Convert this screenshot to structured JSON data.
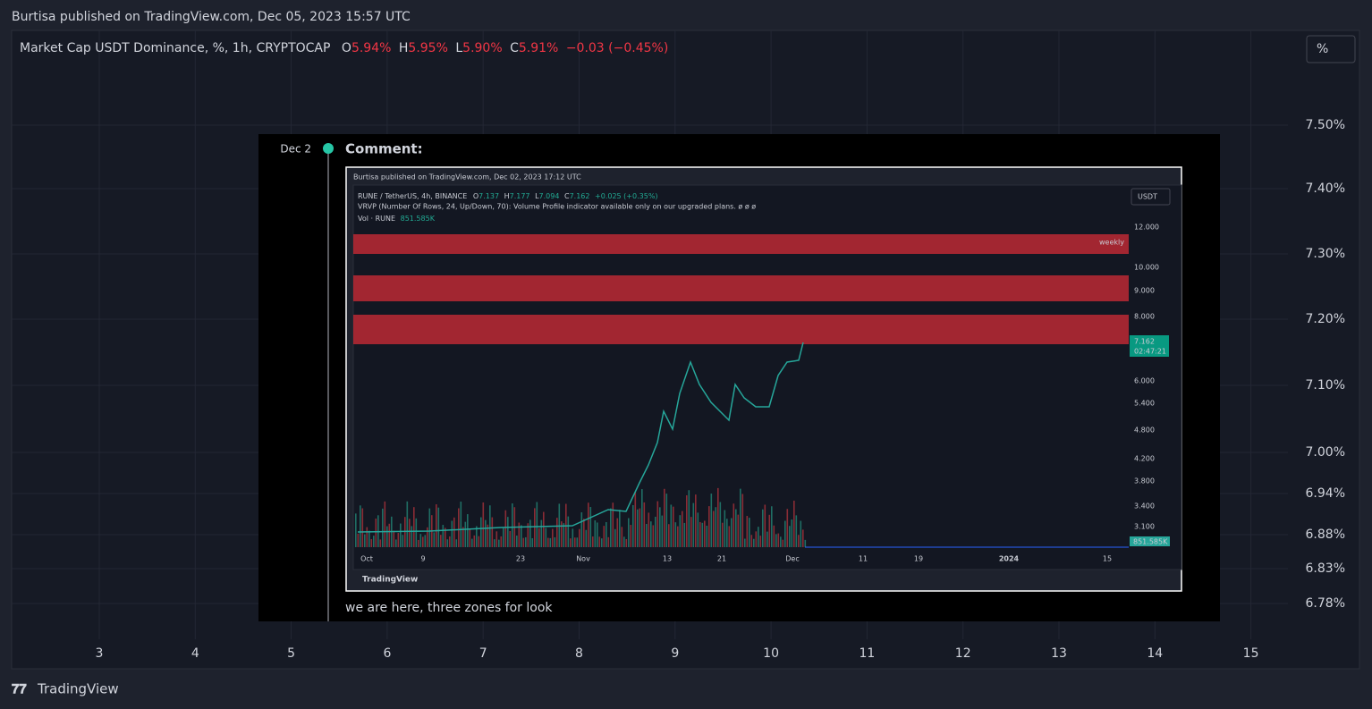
{
  "header": {
    "title": "Burtisa published on TradingView.com, Dec 05, 2023 15:57 UTC"
  },
  "legend": {
    "symbol": "Market Cap USDT Dominance, %, 1h, CRYPTOCAP",
    "items": [
      {
        "key": "O",
        "value": "5.94%"
      },
      {
        "key": "H",
        "value": "5.95%"
      },
      {
        "key": "L",
        "value": "5.90%"
      },
      {
        "key": "C",
        "value": "5.91%"
      }
    ],
    "change": "−0.03 (−0.45%)"
  },
  "scale_button": "%",
  "price_axis": [
    "7.50%",
    "7.40%",
    "7.30%",
    "7.20%",
    "7.10%",
    "7.00%",
    "6.94%",
    "6.88%",
    "6.83%",
    "6.78%"
  ],
  "time_axis": [
    "3",
    "4",
    "5",
    "6",
    "7",
    "8",
    "9",
    "10",
    "11",
    "12",
    "13",
    "14",
    "15"
  ],
  "comment": {
    "date": "Dec 2",
    "heading": "Comment:",
    "text": "we are here, three zones for look",
    "image": {
      "title": "Burtisa published on TradingView.com, Dec 02, 2023 17:12 UTC",
      "legend": {
        "symbol": "RUNE / TetherUS, 4h, BINANCE",
        "items": [
          {
            "key": "O",
            "value": "7.137"
          },
          {
            "key": "H",
            "value": "7.177"
          },
          {
            "key": "L",
            "value": "7.094"
          },
          {
            "key": "C",
            "value": "7.162"
          }
        ],
        "change": "+0.025 (+0.35%)"
      },
      "indicator": "VRVP (Number Of Rows, 24, Up/Down, 70): Volume Profile indicator available only on our upgraded plans.  ø  ø  ø",
      "volume_legend": {
        "key": "Vol · RUNE",
        "value": "851.585K"
      },
      "currency_button": "USDT",
      "zone_label": "weekly",
      "price_axis": [
        "12.000",
        "10.000",
        "9.000",
        "8.000",
        "6.000",
        "5.400",
        "4.800",
        "4.200",
        "3.800",
        "3.400",
        "3.100"
      ],
      "price_tag": {
        "price": "7.162",
        "countdown": "02:47:21"
      },
      "volume_tag": "851.585K",
      "time_axis": [
        "Oct",
        "9",
        "23",
        "Nov",
        "13",
        "21",
        "Dec",
        "11",
        "19",
        "2024",
        "15"
      ],
      "brand": "TradingView"
    }
  },
  "footer": {
    "brand": "TradingView"
  }
}
